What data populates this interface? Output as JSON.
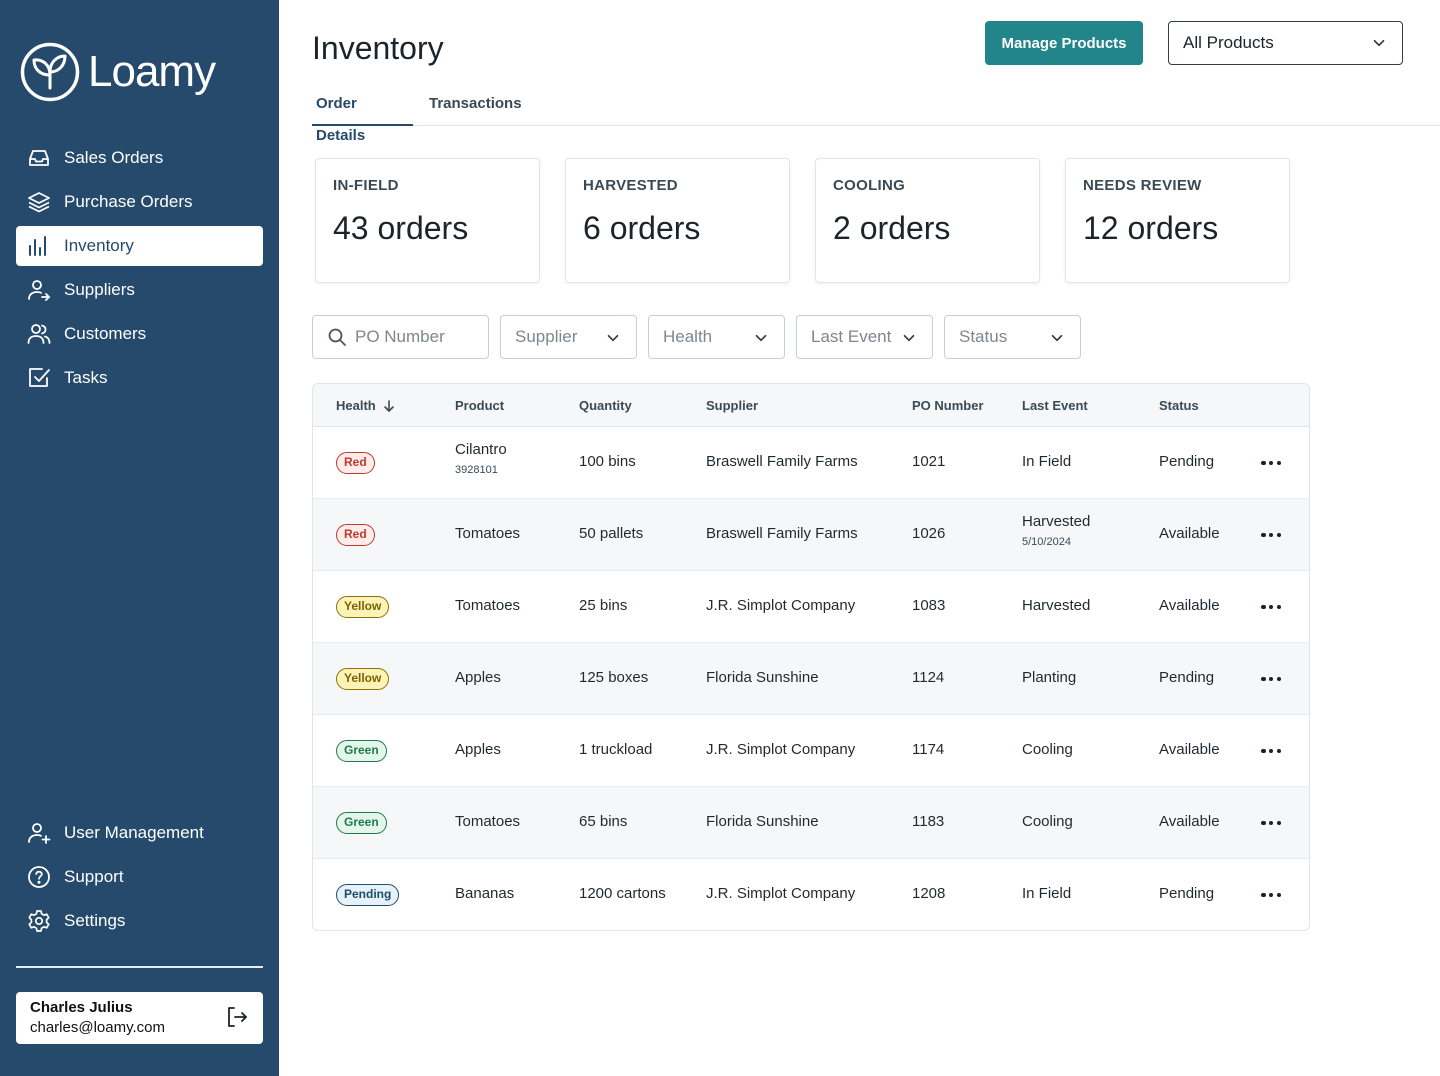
{
  "app": {
    "name": "Loamy"
  },
  "sidebar": {
    "top_items": [
      {
        "label": "Sales Orders",
        "icon": "inbox-icon"
      },
      {
        "label": "Purchase Orders",
        "icon": "layers-icon"
      },
      {
        "label": "Inventory",
        "icon": "bar-chart-icon",
        "active": true
      },
      {
        "label": "Suppliers",
        "icon": "user-arrow-icon"
      },
      {
        "label": "Customers",
        "icon": "users-icon"
      },
      {
        "label": "Tasks",
        "icon": "checkbox-icon"
      }
    ],
    "bottom_items": [
      {
        "label": "User Management",
        "icon": "user-plus-icon"
      },
      {
        "label": "Support",
        "icon": "help-circle-icon"
      },
      {
        "label": "Settings",
        "icon": "gear-icon"
      }
    ],
    "user": {
      "name": "Charles Julius",
      "email": "charles@loamy.com"
    }
  },
  "header": {
    "title": "Inventory",
    "manage_button": "Manage Products",
    "product_filter": "All Products"
  },
  "tabs": [
    {
      "label": "Order Details",
      "active": true
    },
    {
      "label": "Transactions"
    }
  ],
  "stats": [
    {
      "label": "IN-FIELD",
      "value": "43 orders"
    },
    {
      "label": "HARVESTED",
      "value": "6 orders"
    },
    {
      "label": "COOLING",
      "value": "2 orders"
    },
    {
      "label": "NEEDS REVIEW",
      "value": "12 orders"
    }
  ],
  "filters": {
    "search_placeholder": "PO Number",
    "supplier": "Supplier",
    "health": "Health",
    "last_event": "Last Event",
    "status": "Status"
  },
  "table": {
    "columns": [
      "Health",
      "Product",
      "Quantity",
      "Supplier",
      "PO Number",
      "Last Event",
      "Status"
    ],
    "rows": [
      {
        "health": "Red",
        "health_class": "red",
        "product": "Cilantro",
        "product_sub": "3928101",
        "quantity": "100 bins",
        "supplier": "Braswell Family Farms",
        "po": "1021",
        "event": "In Field",
        "event_sub": "",
        "status": "Pending"
      },
      {
        "health": "Red",
        "health_class": "red",
        "product": "Tomatoes",
        "product_sub": "",
        "quantity": "50 pallets",
        "supplier": "Braswell Family Farms",
        "po": "1026",
        "event": "Harvested",
        "event_sub": "5/10/2024",
        "status": "Available"
      },
      {
        "health": "Yellow",
        "health_class": "yellow",
        "product": "Tomatoes",
        "product_sub": "",
        "quantity": "25 bins",
        "supplier": "J.R. Simplot Company",
        "po": "1083",
        "event": "Harvested",
        "event_sub": "",
        "status": "Available"
      },
      {
        "health": "Yellow",
        "health_class": "yellow",
        "product": "Apples",
        "product_sub": "",
        "quantity": "125 boxes",
        "supplier": "Florida Sunshine",
        "po": "1124",
        "event": "Planting",
        "event_sub": "",
        "status": "Pending"
      },
      {
        "health": "Green",
        "health_class": "green",
        "product": "Apples",
        "product_sub": "",
        "quantity": "1 truckload",
        "supplier": "J.R. Simplot Company",
        "po": "1174",
        "event": "Cooling",
        "event_sub": "",
        "status": "Available"
      },
      {
        "health": "Green",
        "health_class": "green",
        "product": "Tomatoes",
        "product_sub": "",
        "quantity": "65 bins",
        "supplier": "Florida Sunshine",
        "po": "1183",
        "event": "Cooling",
        "event_sub": "",
        "status": "Available"
      },
      {
        "health": "Pending",
        "health_class": "pending",
        "product": "Bananas",
        "product_sub": "",
        "quantity": "1200 cartons",
        "supplier": "J.R. Simplot Company",
        "po": "1208",
        "event": "In Field",
        "event_sub": "",
        "status": "Pending"
      }
    ]
  },
  "colors": {
    "sidebar_bg": "#264a6b",
    "accent": "#22858a"
  }
}
